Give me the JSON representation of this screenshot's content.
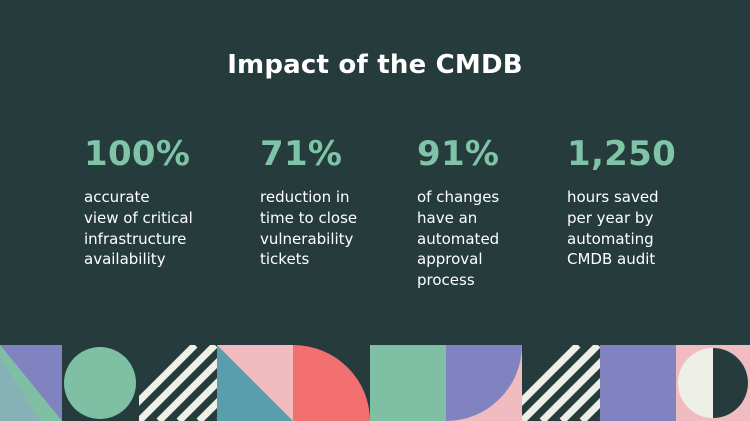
{
  "slide": {
    "title": "Impact of the CMDB"
  },
  "stats": [
    {
      "value": "100%",
      "description": "accurate\nview of critical\ninfrastructure\navailability"
    },
    {
      "value": "71%",
      "description": "reduction in\ntime to close\nvulnerability\ntickets"
    },
    {
      "value": "91%",
      "description": "of changes\nhave an\nautomated\napproval\nprocess"
    },
    {
      "value": "1,250",
      "description": "hours saved\nper year by\nautomating\nCMDB audit"
    }
  ],
  "colors": {
    "background": "#253b3c",
    "accent": "#7fc4a6",
    "text": "#ffffff",
    "lavender": "#8183c0",
    "mint": "#7fbfa4",
    "pink": "#f0bcc0",
    "coral": "#f2706f",
    "teal": "#5a9eab",
    "cream": "#eef0e8"
  }
}
